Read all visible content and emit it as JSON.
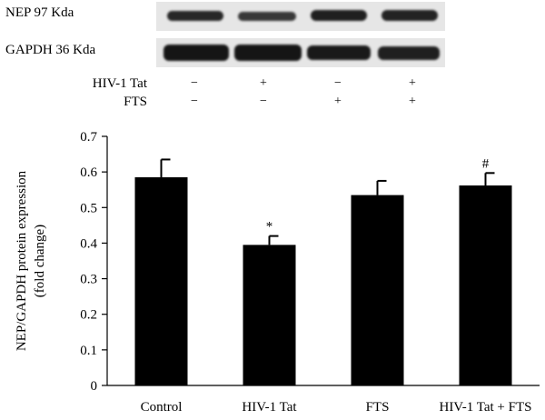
{
  "blot": {
    "rows": [
      {
        "label": "NEP 97 Kda",
        "band_intensity": [
          0.72,
          0.6,
          0.78,
          0.75
        ]
      },
      {
        "label": "GAPDH 36 Kda",
        "band_intensity": [
          0.85,
          0.85,
          0.82,
          0.78
        ]
      }
    ]
  },
  "treatments": {
    "rows": [
      {
        "label": "HIV-1 Tat",
        "signs": [
          "−",
          "+",
          "−",
          "+"
        ]
      },
      {
        "label": "FTS",
        "signs": [
          "−",
          "−",
          "+",
          "+"
        ]
      }
    ]
  },
  "chart_data": {
    "type": "bar",
    "categories": [
      "Control",
      "HIV-1 Tat",
      "FTS",
      "HIV-1 Tat + FTS"
    ],
    "values": [
      0.585,
      0.395,
      0.535,
      0.562
    ],
    "errors": [
      0.05,
      0.025,
      0.04,
      0.035
    ],
    "annotations": [
      "",
      "*",
      "",
      "#"
    ],
    "ylabel": "NEP/GAPDH protein expression\n(fold change)",
    "ylabel_lines": [
      "NEP/GAPDH protein expression",
      "(fold change)"
    ],
    "ylim": [
      0,
      0.7
    ],
    "yticks": [
      "0",
      "0.1",
      "0.2",
      "0.3",
      "0.4",
      "0.5",
      "0.6",
      "0.7"
    ],
    "bar_color": "#000000",
    "grid": false
  }
}
